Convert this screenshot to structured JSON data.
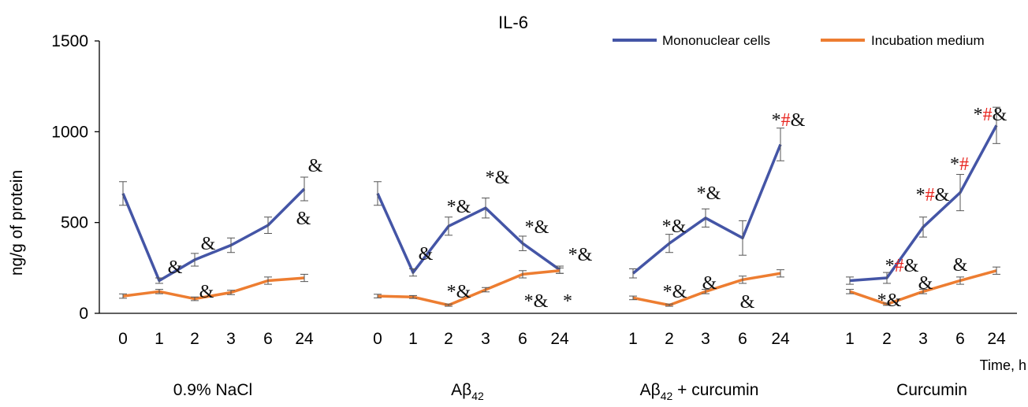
{
  "chart_data": {
    "type": "line",
    "title": "IL-6",
    "ylabel": "ng/g of protein",
    "xlabel": "Time, h",
    "ylim": [
      0,
      1500
    ],
    "yticks": [
      0,
      500,
      1000,
      1500
    ],
    "grid": false,
    "legend_position": "top-right",
    "series_names": [
      "Mononuclear cells",
      "Incubation medium"
    ],
    "colors": {
      "Mononuclear cells": "#4455a6",
      "Incubation medium": "#ed7d31",
      "annotation": "#111111",
      "hash": "#e8251f",
      "axis": "#000000",
      "errorbar": "#555555"
    },
    "groups": [
      {
        "label": "0.9% NaCl",
        "categories": [
          "0",
          "1",
          "2",
          "3",
          "6",
          "24"
        ],
        "series": [
          {
            "name": "Mononuclear cells",
            "values": [
              660,
              180,
              295,
              375,
              485,
              685
            ],
            "errors": [
              65,
              15,
              35,
              40,
              45,
              65
            ]
          },
          {
            "name": "Incubation medium",
            "values": [
              95,
              120,
              80,
              115,
              180,
              195
            ],
            "errors": [
              12,
              12,
              10,
              12,
              20,
              20
            ]
          }
        ],
        "annotations": [
          {
            "x": "1",
            "parts": [
              {
                "t": "&",
                "c": "annotation"
              }
            ]
          },
          {
            "x": "2",
            "parts": [
              {
                "t": "&",
                "c": "annotation"
              }
            ]
          },
          {
            "x": "24",
            "parts": [
              {
                "t": "&",
                "c": "annotation"
              }
            ]
          },
          {
            "x": "2",
            "parts": [
              {
                "t": "&",
                "c": "annotation"
              }
            ]
          },
          {
            "x": "24",
            "parts": [
              {
                "t": "&",
                "c": "annotation"
              }
            ]
          }
        ]
      },
      {
        "label": "Aβ42",
        "label_main": "Aβ",
        "label_sub": "42",
        "categories": [
          "0",
          "1",
          "2",
          "3",
          "6",
          "24"
        ],
        "series": [
          {
            "name": "Mononuclear cells",
            "values": [
              660,
              225,
              480,
              580,
              385,
              240
            ],
            "errors": [
              65,
              20,
              50,
              55,
              40,
              20
            ]
          },
          {
            "name": "Incubation medium",
            "values": [
              95,
              90,
              45,
              130,
              215,
              235
            ],
            "errors": [
              10,
              8,
              6,
              12,
              20,
              15
            ]
          }
        ],
        "annotations": [
          {
            "x": "1",
            "parts": [
              {
                "t": "&",
                "c": "annotation"
              }
            ]
          },
          {
            "x": "2",
            "parts": [
              {
                "t": "*&",
                "c": "annotation"
              }
            ]
          },
          {
            "x": "3",
            "parts": [
              {
                "t": "*&",
                "c": "annotation"
              }
            ]
          },
          {
            "x": "6",
            "parts": [
              {
                "t": "*&",
                "c": "annotation"
              }
            ]
          },
          {
            "x": "24",
            "parts": [
              {
                "t": "*&",
                "c": "annotation"
              }
            ]
          },
          {
            "x": "2",
            "parts": [
              {
                "t": "*&",
                "c": "annotation"
              }
            ]
          },
          {
            "x": "6",
            "parts": [
              {
                "t": "*&",
                "c": "annotation"
              }
            ]
          },
          {
            "x": "24",
            "parts": [
              {
                "t": "*",
                "c": "annotation"
              }
            ]
          }
        ]
      },
      {
        "label": "Aβ42 + curcumin",
        "label_main": "Aβ",
        "label_sub": "42",
        "label_rest": " + curcumin",
        "categories": [
          "1",
          "2",
          "3",
          "6",
          "24"
        ],
        "series": [
          {
            "name": "Mononuclear cells",
            "values": [
              220,
              385,
              525,
              415,
              930
            ],
            "errors": [
              25,
              50,
              50,
              95,
              90
            ]
          },
          {
            "name": "Incubation medium",
            "values": [
              85,
              45,
              120,
              185,
              220
            ],
            "errors": [
              10,
              6,
              12,
              20,
              20
            ]
          }
        ],
        "annotations": [
          {
            "x": "2",
            "parts": [
              {
                "t": "*&",
                "c": "annotation"
              }
            ]
          },
          {
            "x": "3",
            "parts": [
              {
                "t": "*&",
                "c": "annotation"
              }
            ]
          },
          {
            "x": "24",
            "parts": [
              {
                "t": "*",
                "c": "annotation"
              },
              {
                "t": "#",
                "c": "hash"
              },
              {
                "t": "&",
                "c": "annotation"
              }
            ]
          },
          {
            "x": "2",
            "parts": [
              {
                "t": "*&",
                "c": "annotation"
              }
            ]
          },
          {
            "x": "3",
            "parts": [
              {
                "t": "&",
                "c": "annotation"
              }
            ]
          },
          {
            "x": "6",
            "parts": [
              {
                "t": "&",
                "c": "annotation"
              }
            ]
          }
        ]
      },
      {
        "label": "Curcumin",
        "categories": [
          "1",
          "2",
          "3",
          "6",
          "24"
        ],
        "series": [
          {
            "name": "Mononuclear cells",
            "values": [
              180,
              195,
              475,
              665,
              1035
            ],
            "errors": [
              20,
              30,
              55,
              100,
              100
            ]
          },
          {
            "name": "Incubation medium",
            "values": [
              120,
              50,
              120,
              180,
              235
            ],
            "errors": [
              12,
              6,
              12,
              20,
              20
            ]
          }
        ],
        "annotations": [
          {
            "x": "2",
            "parts": [
              {
                "t": "*",
                "c": "annotation"
              },
              {
                "t": "#",
                "c": "hash"
              },
              {
                "t": "&",
                "c": "annotation"
              }
            ]
          },
          {
            "x": "3",
            "parts": [
              {
                "t": "*",
                "c": "annotation"
              },
              {
                "t": "#",
                "c": "hash"
              },
              {
                "t": "&",
                "c": "annotation"
              }
            ]
          },
          {
            "x": "6",
            "parts": [
              {
                "t": "*",
                "c": "annotation"
              },
              {
                "t": "#",
                "c": "hash"
              }
            ]
          },
          {
            "x": "24",
            "parts": [
              {
                "t": "*",
                "c": "annotation"
              },
              {
                "t": "#",
                "c": "hash"
              },
              {
                "t": "&",
                "c": "annotation"
              }
            ]
          },
          {
            "x": "2",
            "parts": [
              {
                "t": "*&",
                "c": "annotation"
              }
            ]
          },
          {
            "x": "3",
            "parts": [
              {
                "t": "&",
                "c": "annotation"
              }
            ]
          },
          {
            "x": "6",
            "parts": [
              {
                "t": "&",
                "c": "annotation"
              }
            ]
          }
        ]
      }
    ]
  }
}
